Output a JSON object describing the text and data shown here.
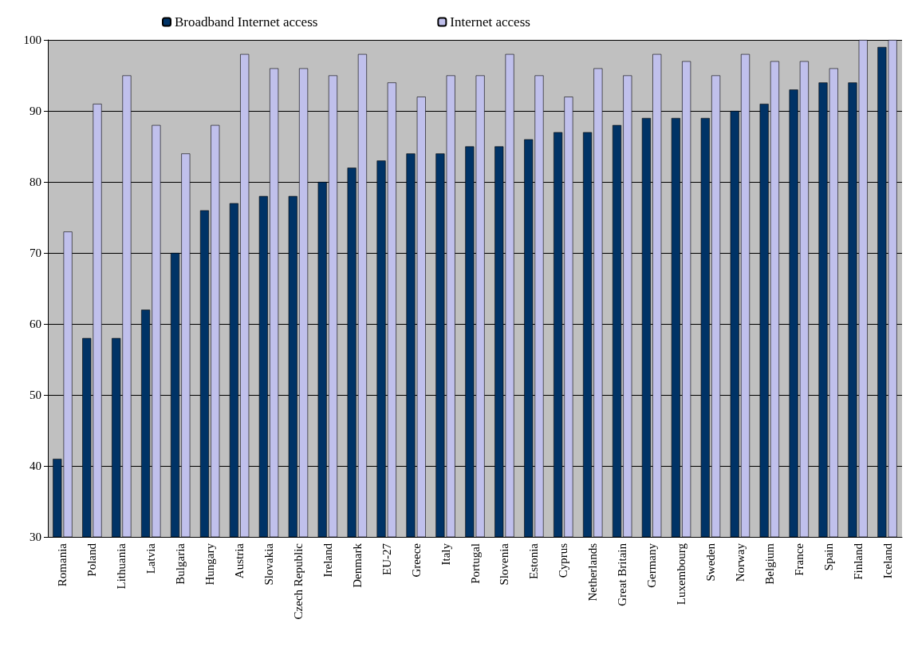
{
  "chart_data": {
    "type": "bar",
    "categories": [
      "Romania",
      "Poland",
      "Lithuania",
      "Latvia",
      "Bulgaria",
      "Hungary",
      "Austria",
      "Slovakia",
      "Czech Republic",
      "Ireland",
      "Denmark",
      "EU-27",
      "Greece",
      "Italy",
      "Portugal",
      "Slovenia",
      "Estonia",
      "Cyprus",
      "Netherlands",
      "Great Britain",
      "Germany",
      "Luxembourg",
      "Sweden",
      "Norway",
      "Belgium",
      "France",
      "Spain",
      "Finland",
      "Iceland"
    ],
    "series": [
      {
        "name": "Broadband Internet access",
        "color": "#003366",
        "values": [
          41,
          58,
          58,
          62,
          70,
          76,
          77,
          78,
          78,
          80,
          82,
          83,
          84,
          84,
          85,
          85,
          86,
          87,
          87,
          88,
          89,
          89,
          89,
          90,
          91,
          93,
          94,
          94,
          99
        ]
      },
      {
        "name": "Internet access",
        "color": "#c0c0ec",
        "values": [
          73,
          91,
          95,
          88,
          84,
          88,
          98,
          96,
          96,
          95,
          98,
          94,
          92,
          95,
          95,
          98,
          95,
          92,
          96,
          95,
          98,
          97,
          95,
          98,
          97,
          97,
          96,
          100,
          100
        ]
      }
    ],
    "ylim": [
      30,
      100
    ],
    "yticks": [
      30,
      40,
      50,
      60,
      70,
      80,
      90,
      100
    ],
    "grid": "y",
    "legend": "top"
  }
}
